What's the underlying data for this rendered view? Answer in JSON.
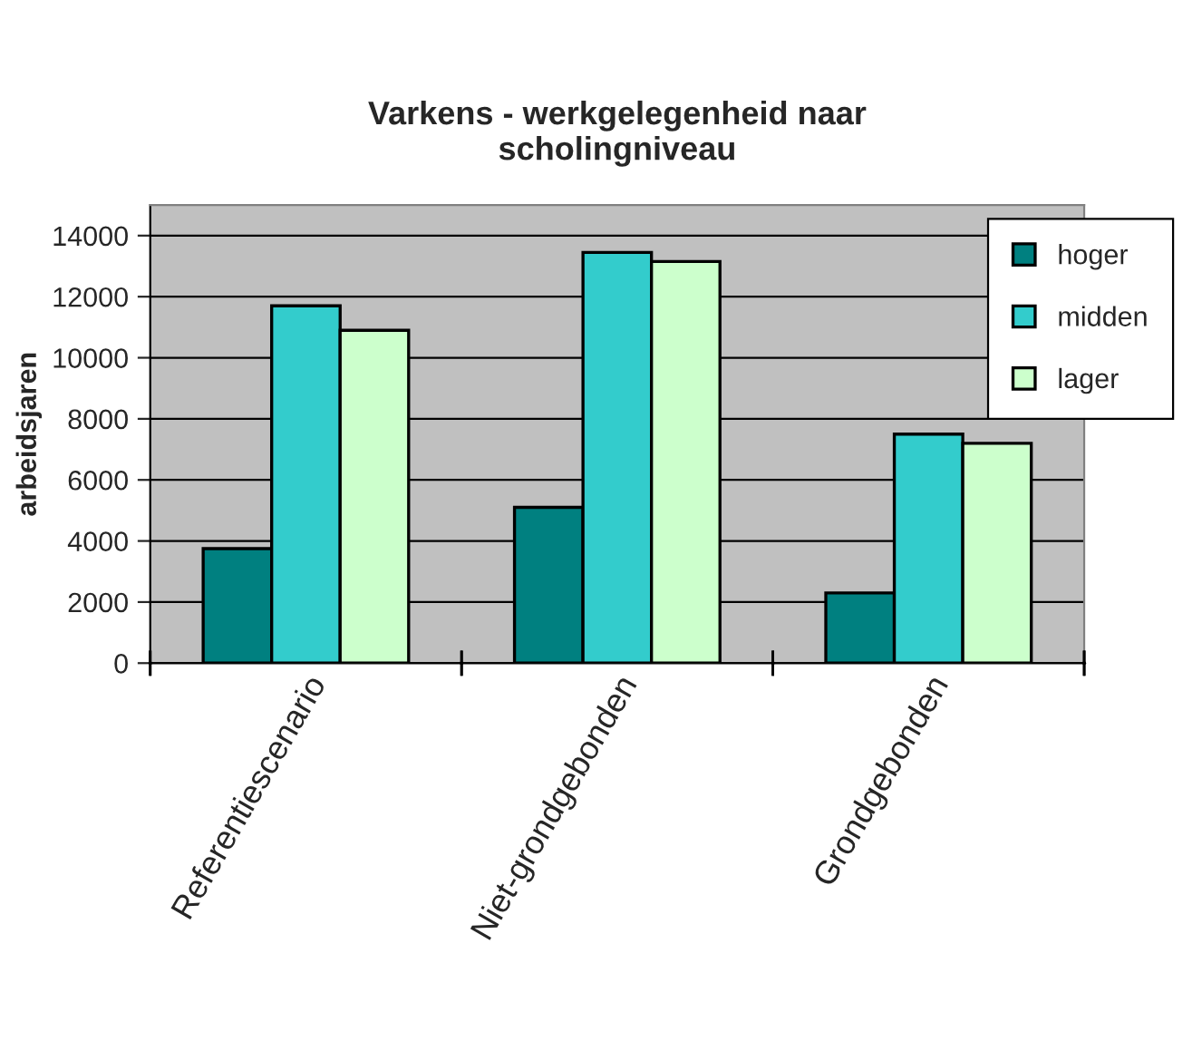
{
  "chart_data": {
    "type": "bar",
    "title": "Varkens - werkgelegenheid naar\nscholingniveau",
    "ylabel": "arbeidsjaren",
    "categories": [
      "Referentiescenario",
      "Niet-grondgebonden",
      "Grondgebonden"
    ],
    "series": [
      {
        "name": "hoger",
        "color": "#008080",
        "values": [
          3750,
          5100,
          2300
        ]
      },
      {
        "name": "midden",
        "color": "#33cccc",
        "values": [
          11700,
          13450,
          7500
        ]
      },
      {
        "name": "lager",
        "color": "#ccffcc",
        "values": [
          10900,
          13150,
          7200
        ]
      }
    ],
    "ylim": [
      0,
      15000
    ],
    "yticks": [
      0,
      2000,
      4000,
      6000,
      8000,
      10000,
      12000,
      14000
    ],
    "grid": "y",
    "legend": "top right"
  }
}
